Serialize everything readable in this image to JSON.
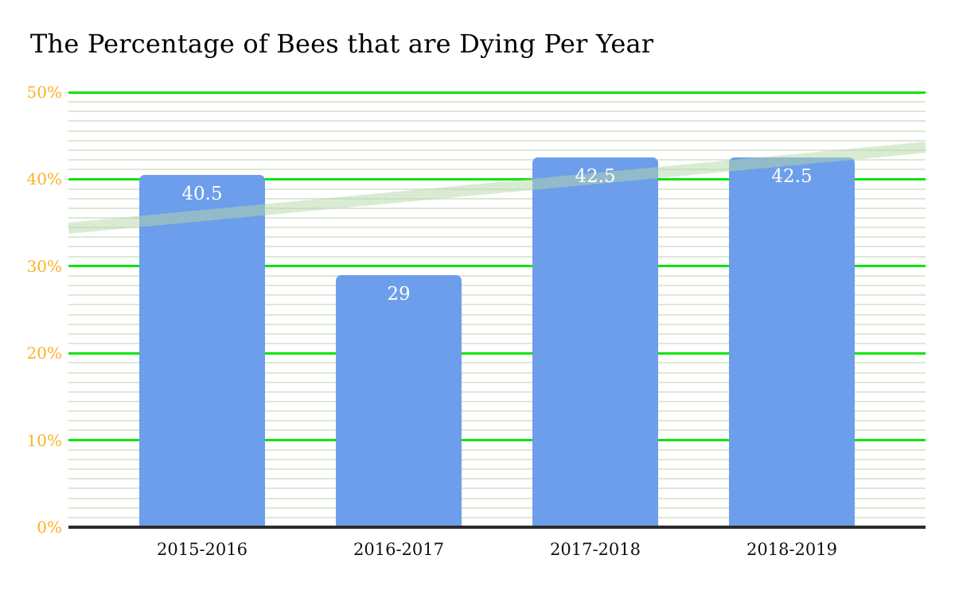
{
  "title": "The Percentage of Bees that are Dying Per Year",
  "chart_data": {
    "type": "bar",
    "title": "The Percentage of Bees that are Dying Per Year",
    "categories": [
      "2015-2016",
      "2016-2017",
      "2017-2018",
      "2018-2019"
    ],
    "values": [
      40.5,
      29,
      42.5,
      42.5
    ],
    "value_labels": [
      "40.5",
      "29",
      "42.5",
      "42.5"
    ],
    "xlabel": "",
    "ylabel": "",
    "ylim": [
      0,
      50
    ],
    "ytick_values": [
      0,
      10,
      20,
      30,
      40,
      50
    ],
    "ytick_labels": [
      "0%",
      "10%",
      "20%",
      "30%",
      "40%",
      "50%"
    ],
    "minor_gridlines_per_major_interval": 8,
    "grid": "on",
    "legend_position": "none",
    "trendline": {
      "shape": "straight-band",
      "start_value_pct": 34.4,
      "end_value_pct": 43.7
    },
    "colors": {
      "bar": "#6d9eeb",
      "value_label": "#ffffff",
      "major_gridline": "#0ce30c",
      "minor_gridline": "#dde8d4",
      "axis_line": "#2b2b2b",
      "y_tick_label": "#fbb124",
      "x_tick_label": "#111111",
      "title": "#000000",
      "trendline": "rgba(182,215,168,0.5)",
      "background": "#ffffff"
    }
  }
}
